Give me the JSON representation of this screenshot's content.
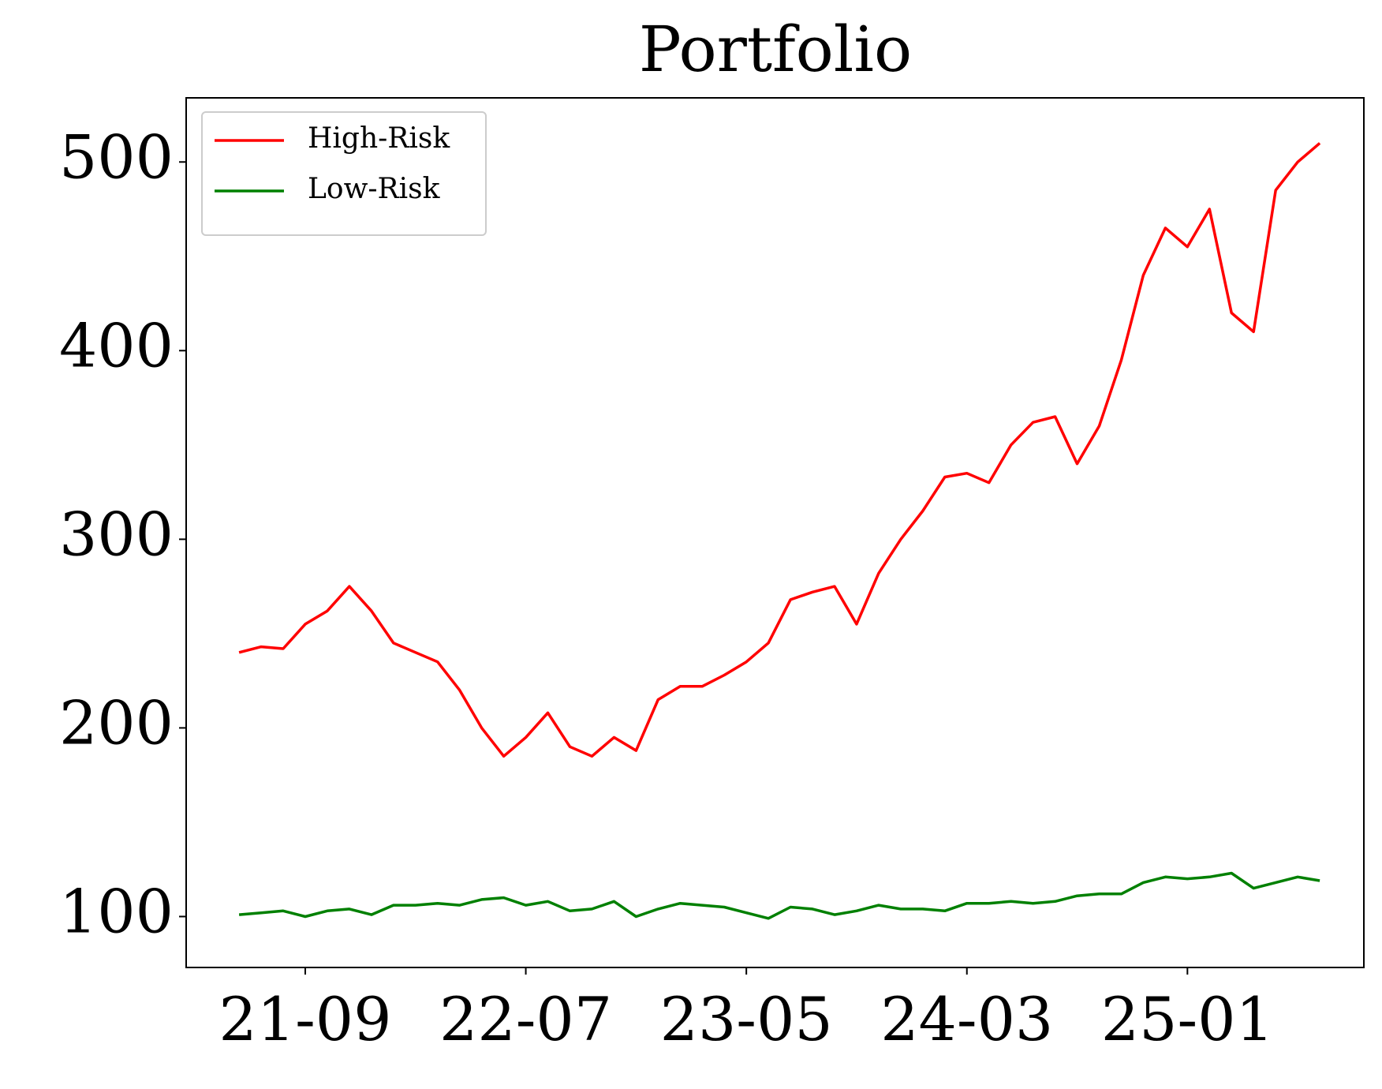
{
  "chart_data": {
    "type": "line",
    "title": "Portfolio",
    "x": [
      "21-06",
      "21-07",
      "21-08",
      "21-09",
      "21-10",
      "21-11",
      "21-12",
      "22-01",
      "22-02",
      "22-03",
      "22-04",
      "22-05",
      "22-06",
      "22-07",
      "22-08",
      "22-09",
      "22-10",
      "22-11",
      "22-12",
      "23-01",
      "23-02",
      "23-03",
      "23-04",
      "23-05",
      "23-06",
      "23-07",
      "23-08",
      "23-09",
      "23-10",
      "23-11",
      "23-12",
      "24-01",
      "24-02",
      "24-03",
      "24-04",
      "24-05",
      "24-06",
      "24-07",
      "24-08",
      "24-09",
      "24-10",
      "24-11",
      "24-12",
      "25-01",
      "25-02",
      "25-03",
      "25-04",
      "25-05",
      "25-06",
      "25-07"
    ],
    "series": [
      {
        "name": "High-Risk",
        "color": "#ff0000",
        "values": [
          240,
          243,
          242,
          255,
          262,
          275,
          262,
          245,
          240,
          235,
          220,
          200,
          185,
          195,
          208,
          190,
          185,
          195,
          188,
          215,
          222,
          222,
          228,
          235,
          245,
          268,
          272,
          275,
          255,
          282,
          300,
          315,
          333,
          335,
          330,
          350,
          362,
          365,
          340,
          360,
          395,
          440,
          465,
          455,
          475,
          420,
          410,
          485,
          500,
          510
        ]
      },
      {
        "name": "Low-Risk",
        "color": "#008000",
        "values": [
          101,
          102,
          103,
          100,
          103,
          104,
          101,
          106,
          106,
          107,
          106,
          109,
          110,
          106,
          108,
          103,
          104,
          108,
          100,
          104,
          107,
          106,
          105,
          102,
          99,
          105,
          104,
          101,
          103,
          106,
          104,
          104,
          103,
          107,
          107,
          108,
          107,
          108,
          111,
          112,
          112,
          118,
          121,
          120,
          121,
          123,
          115,
          118,
          121,
          119
        ]
      }
    ],
    "ylim": [
      73,
      534
    ],
    "yticks": [
      100,
      200,
      300,
      400,
      500
    ],
    "xticks": [
      "21-09",
      "22-07",
      "23-05",
      "24-03",
      "25-01"
    ],
    "grid": false,
    "legend": "upper left"
  }
}
